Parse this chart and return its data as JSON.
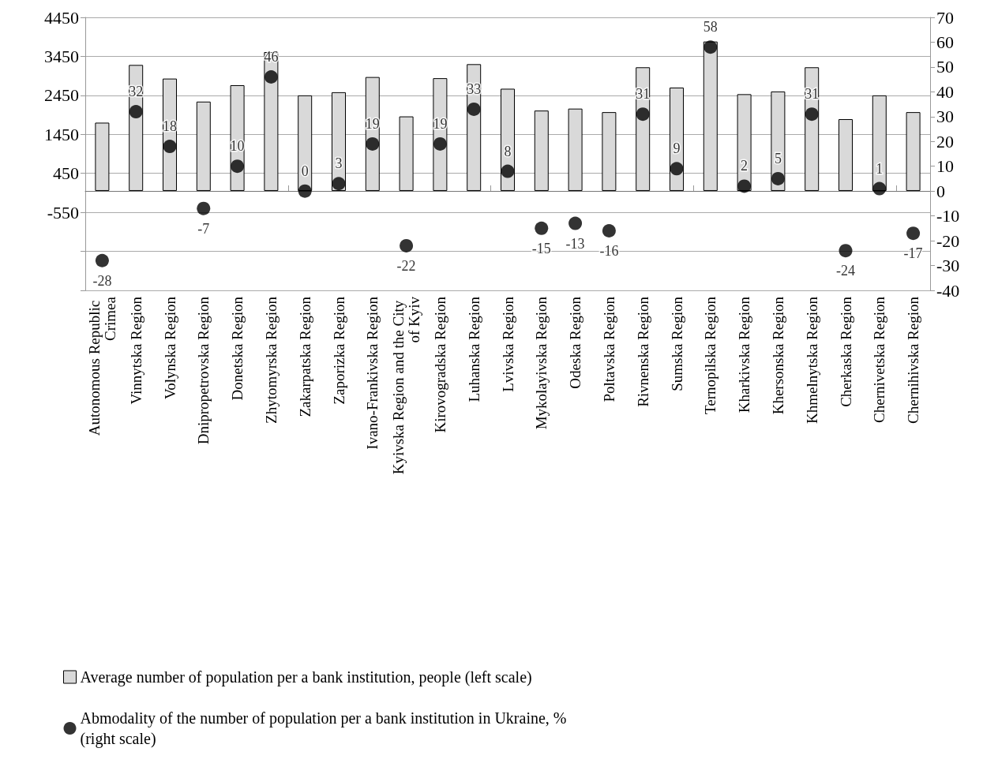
{
  "chart_data": {
    "type": "bar",
    "categories": [
      "Autonomous Republic Crimea",
      "Vinnytska Region",
      "Volynska Region",
      "Dnipropetrovska Region",
      "Donetska Region",
      "Zhytomyrska Region",
      "Zakarpatska Region",
      "Zaporizka Region",
      "Ivano-Frankivska Region",
      "Kyivska Region and the City of Kyiv",
      "Kirovogradska Region",
      "Luhanska Region",
      "Lvivska Region",
      "Mykolayivska Region",
      "Odeska Region",
      "Poltavska Region",
      "Rivnenska Region",
      "Sumska Region",
      "Ternopilska Region",
      "Kharkivska Region",
      "Khersonska Region",
      "Khmelnytska Region",
      "Cherkaska Region",
      "Chernivetska Region",
      "Chernihivska Region"
    ],
    "series": [
      {
        "name": "Average number of population per a bank institution, people (left scale)",
        "color": "#d9d9d9",
        "values": [
          1750,
          3230,
          2880,
          2290,
          2710,
          3560,
          2450,
          2530,
          2920,
          1910,
          2890,
          3250,
          2620,
          2060,
          2110,
          2020,
          3170,
          2650,
          3830,
          2480,
          2550,
          3170,
          1840,
          2450,
          2020
        ]
      },
      {
        "name": "Abmodality of the number of population per a bank institution in Ukraine, % (right scale)",
        "type": "scatter",
        "axis": "y2",
        "color": "#000000",
        "values": [
          -28,
          32,
          18,
          -7,
          10,
          46,
          0,
          3,
          19,
          -22,
          19,
          33,
          8,
          -15,
          -13,
          -16,
          31,
          9,
          58,
          2,
          5,
          31,
          -24,
          1,
          -17
        ],
        "value_labels": [
          "-28",
          "32",
          "18",
          "-7",
          "10",
          "46",
          "0",
          "3",
          "19",
          "-22",
          "19",
          "33",
          "8",
          "-15",
          "-13",
          "-16",
          "31",
          "9",
          "58",
          "2",
          "5",
          "31",
          "-24",
          "1",
          "-17"
        ]
      }
    ],
    "ylim": [
      -2550,
      4450
    ],
    "yticks": [
      {
        "value": -2550,
        "label": null
      },
      {
        "value": -1550,
        "label": null
      },
      -550,
      450,
      1450,
      2450,
      3450,
      4450
    ],
    "y2lim": [
      -40,
      70
    ],
    "y2ticks": [
      -40,
      -30,
      -20,
      -10,
      0,
      10,
      20,
      30,
      40,
      50,
      60,
      70
    ],
    "grid": "y",
    "legend": "bottom",
    "marker": "circle"
  }
}
